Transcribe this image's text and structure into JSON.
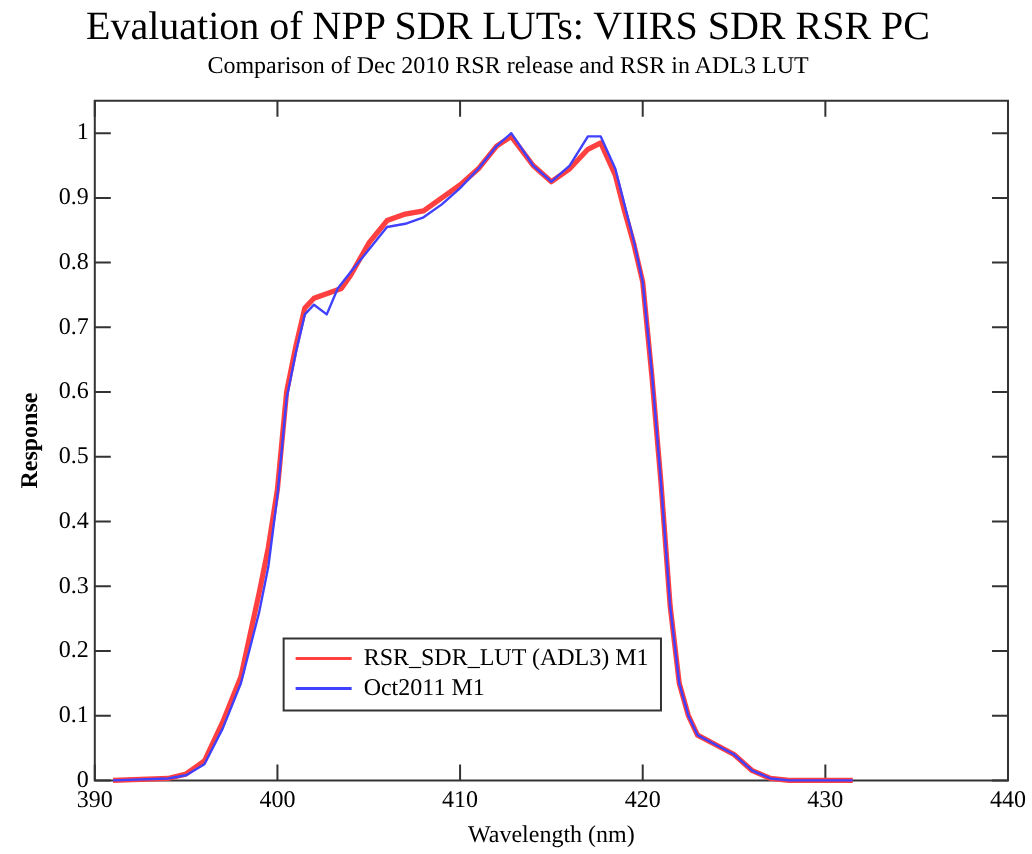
{
  "chart_data": {
    "type": "line",
    "title": "Evaluation of NPP SDR LUTs: VIIRS SDR RSR PC",
    "subtitle": "Comparison of Dec 2010 RSR release and RSR in ADL3 LUT",
    "xlabel": "Wavelength (nm)",
    "ylabel": "Response",
    "xlim": [
      390,
      440
    ],
    "xticks": [
      390,
      400,
      410,
      420,
      430,
      440
    ],
    "ylim": [
      0,
      1.05
    ],
    "yticks": [
      0,
      0.1,
      0.2,
      0.3,
      0.4,
      0.5,
      0.6,
      0.7,
      0.8,
      0.9,
      1
    ],
    "grid": false,
    "legend": "bottom",
    "marker": "none",
    "line_style": "solid",
    "series": [
      {
        "name": "RSR_SDR_LUT (ADL3) M1",
        "color": "#ff4040",
        "x": [
          391,
          394,
          395,
          396,
          397,
          398,
          399,
          399.5,
          400,
          400.5,
          401,
          401.5,
          402,
          403,
          403.5,
          404,
          405,
          406,
          407,
          408,
          409,
          410,
          411,
          412,
          412.8,
          414,
          415,
          416,
          417,
          417.7,
          418.5,
          419,
          419.5,
          420,
          420.5,
          421,
          421.5,
          422,
          422.5,
          423,
          424,
          425,
          426,
          427,
          428,
          431.5
        ],
        "values": [
          0,
          0.003,
          0.01,
          0.03,
          0.09,
          0.16,
          0.29,
          0.36,
          0.45,
          0.6,
          0.67,
          0.73,
          0.745,
          0.755,
          0.76,
          0.78,
          0.83,
          0.865,
          0.875,
          0.88,
          0.9,
          0.92,
          0.945,
          0.98,
          0.995,
          0.95,
          0.925,
          0.945,
          0.975,
          0.985,
          0.935,
          0.88,
          0.83,
          0.77,
          0.625,
          0.46,
          0.27,
          0.15,
          0.1,
          0.07,
          0.055,
          0.04,
          0.015,
          0.003,
          0,
          0
        ]
      },
      {
        "name": "Oct2011 M1",
        "color": "#4040ff",
        "x": [
          391,
          394,
          395,
          396,
          397,
          398,
          399,
          399.5,
          400,
          400.5,
          401,
          401.5,
          402,
          402.7,
          403.3,
          404,
          405,
          406,
          407,
          408,
          409,
          410,
          411,
          412,
          412.8,
          414,
          415,
          416,
          417,
          417.7,
          418.5,
          419,
          419.5,
          420,
          420.5,
          421,
          421.5,
          422,
          422.5,
          423,
          424,
          425,
          426,
          427,
          428,
          431.5
        ],
        "values": [
          0,
          0.003,
          0.008,
          0.025,
          0.08,
          0.15,
          0.26,
          0.33,
          0.44,
          0.59,
          0.66,
          0.72,
          0.735,
          0.72,
          0.76,
          0.785,
          0.82,
          0.855,
          0.86,
          0.87,
          0.89,
          0.915,
          0.945,
          0.98,
          1,
          0.95,
          0.925,
          0.95,
          0.995,
          0.995,
          0.945,
          0.89,
          0.835,
          0.77,
          0.63,
          0.46,
          0.27,
          0.15,
          0.1,
          0.07,
          0.055,
          0.04,
          0.015,
          0.003,
          0,
          0
        ]
      }
    ]
  }
}
